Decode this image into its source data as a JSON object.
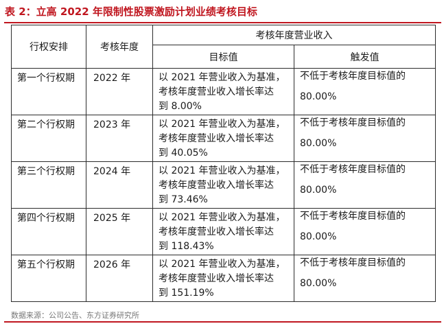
{
  "title": "表 2：立高 2022 年限制性股票激励计划业绩考核目标",
  "headers": {
    "period": "行权安排",
    "year": "考核年度",
    "revenue_group": "考核年度营业收入",
    "target": "目标值",
    "trigger": "触发值"
  },
  "rows": [
    {
      "period": "第一个行权期",
      "year": "2022 年",
      "target_l1": "以 2021 年营业收入为基准，",
      "target_l2": "考核年度营业收入增长率达",
      "target_l3": "到 8.00%",
      "trigger_text": "不低于考核年度目标值的",
      "trigger_value": "80.00%"
    },
    {
      "period": "第二个行权期",
      "year": "2023 年",
      "target_l1": "以 2021 年营业收入为基准，",
      "target_l2": "考核年度营业收入增长率达",
      "target_l3": "到 40.05%",
      "trigger_text": "不低于考核年度目标值的",
      "trigger_value": "80.00%"
    },
    {
      "period": "第三个行权期",
      "year": "2024 年",
      "target_l1": "以 2021 年营业收入为基准，",
      "target_l2": "考核年度营业收入增长率达",
      "target_l3": "到 73.46%",
      "trigger_text": "不低于考核年度目标值的",
      "trigger_value": "80.00%"
    },
    {
      "period": "第四个行权期",
      "year": "2025 年",
      "target_l1": "以 2021 年营业收入为基准，",
      "target_l2": "考核年度营业收入增长率达",
      "target_l3": "到 118.43%",
      "trigger_text": "不低于考核年度目标值的",
      "trigger_value": "80.00%"
    },
    {
      "period": "第五个行权期",
      "year": "2026 年",
      "target_l1": "以 2021 年营业收入为基准，",
      "target_l2": "考核年度营业收入增长率达",
      "target_l3": "到 151.19%",
      "trigger_text": "不低于考核年度目标值的",
      "trigger_value": "80.00%"
    }
  ],
  "source": "数据来源：公司公告、东方证券研究所",
  "colors": {
    "accent": "#c0161f",
    "text": "#1a1a1a",
    "border": "#2b2b2b",
    "source_text": "#777777"
  }
}
